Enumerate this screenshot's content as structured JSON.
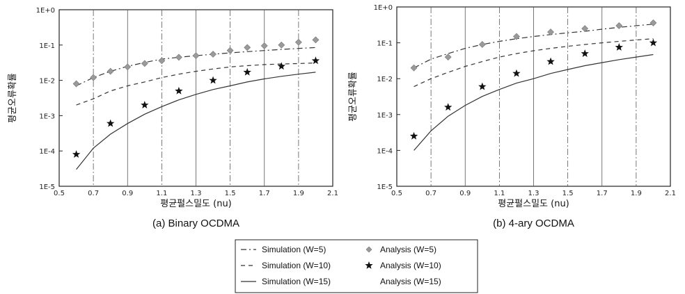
{
  "chart_data": [
    {
      "type": "line",
      "caption": "(a) Binary OCDMA",
      "xlabel": "평균펄스밀도 (nu)",
      "ylabel": "평균오류확률",
      "log_y": true,
      "ylim": [
        1e-05,
        1
      ],
      "xlim": [
        0.5,
        2.1
      ],
      "x_ticks": [
        "0.5",
        "0.7",
        "0.9",
        "1.1",
        "1.3",
        "1.5",
        "1.7",
        "1.9",
        "2.1"
      ],
      "y_ticks": [
        "1E-5",
        "1E-4",
        "1E-3",
        "1E-2",
        "1E-1",
        "1E+0"
      ],
      "series": [
        {
          "name": "Simulation (W=5)",
          "kind": "simulation",
          "x": [
            0.6,
            0.7,
            0.8,
            0.9,
            1.0,
            1.1,
            1.2,
            1.3,
            1.4,
            1.5,
            1.6,
            1.7,
            1.8,
            1.9,
            2.0
          ],
          "y": [
            0.007,
            0.012,
            0.018,
            0.025,
            0.032,
            0.04,
            0.045,
            0.05,
            0.055,
            0.06,
            0.065,
            0.07,
            0.075,
            0.08,
            0.085
          ]
        },
        {
          "name": "Analysis (W=5)",
          "kind": "analysis",
          "x": [
            0.6,
            0.7,
            0.8,
            0.9,
            1.0,
            1.1,
            1.2,
            1.3,
            1.4,
            1.5,
            1.6,
            1.7,
            1.8,
            1.9,
            2.0
          ],
          "y": [
            0.008,
            0.012,
            0.018,
            0.024,
            0.03,
            0.036,
            0.045,
            0.05,
            0.055,
            0.07,
            0.085,
            0.095,
            0.1,
            0.12,
            0.14
          ]
        },
        {
          "name": "Simulation (W=10)",
          "kind": "simulation",
          "x": [
            0.6,
            0.7,
            0.8,
            0.9,
            1.0,
            1.1,
            1.2,
            1.3,
            1.4,
            1.5,
            1.6,
            1.7,
            1.8,
            1.9,
            2.0
          ],
          "y": [
            0.002,
            0.003,
            0.005,
            0.007,
            0.009,
            0.012,
            0.015,
            0.018,
            0.021,
            0.024,
            0.026,
            0.028,
            0.029,
            0.03,
            0.031
          ]
        },
        {
          "name": "Analysis (W=10)",
          "kind": "analysis",
          "x": [
            0.6,
            0.8,
            1.0,
            1.2,
            1.4,
            1.6,
            1.8,
            2.0
          ],
          "y": [
            8e-05,
            0.0006,
            0.002,
            0.005,
            0.01,
            0.017,
            0.025,
            0.036
          ]
        },
        {
          "name": "Simulation (W=15)",
          "kind": "simulation",
          "x": [
            0.6,
            0.7,
            0.8,
            0.9,
            1.0,
            1.1,
            1.2,
            1.3,
            1.4,
            1.5,
            1.6,
            1.7,
            1.8,
            1.9,
            2.0
          ],
          "y": [
            3e-05,
            0.00012,
            0.0003,
            0.0006,
            0.0011,
            0.0018,
            0.0028,
            0.004,
            0.0055,
            0.007,
            0.009,
            0.011,
            0.013,
            0.015,
            0.017
          ]
        },
        {
          "name": "Analysis (W=15)",
          "kind": "analysis",
          "x": [],
          "y": []
        }
      ]
    },
    {
      "type": "line",
      "caption": "(b) 4-ary OCDMA",
      "xlabel": "평균펄스밀도 (nu)",
      "ylabel": "평균오류확률",
      "log_y": true,
      "ylim": [
        1e-05,
        1
      ],
      "xlim": [
        0.5,
        2.1
      ],
      "x_ticks": [
        "0.5",
        "0.7",
        "0.9",
        "1.1",
        "1.3",
        "1.5",
        "1.7",
        "1.9",
        "2.1"
      ],
      "y_ticks": [
        "1E-5",
        "1E-4",
        "1E-3",
        "1E-2",
        "1E-1",
        "1E+0"
      ],
      "series": [
        {
          "name": "Simulation (W=5)",
          "kind": "simulation",
          "x": [
            0.6,
            0.7,
            0.8,
            0.9,
            1.0,
            1.1,
            1.2,
            1.3,
            1.4,
            1.5,
            1.6,
            1.7,
            1.8,
            1.9,
            2.0
          ],
          "y": [
            0.02,
            0.035,
            0.05,
            0.07,
            0.09,
            0.11,
            0.13,
            0.15,
            0.17,
            0.19,
            0.21,
            0.24,
            0.27,
            0.3,
            0.33
          ]
        },
        {
          "name": "Analysis (W=5)",
          "kind": "analysis",
          "x": [
            0.6,
            0.8,
            1.0,
            1.2,
            1.4,
            1.6,
            1.8,
            2.0
          ],
          "y": [
            0.02,
            0.04,
            0.09,
            0.15,
            0.2,
            0.25,
            0.3,
            0.36
          ]
        },
        {
          "name": "Simulation (W=10)",
          "kind": "simulation",
          "x": [
            0.6,
            0.7,
            0.8,
            0.9,
            1.0,
            1.1,
            1.2,
            1.3,
            1.4,
            1.5,
            1.6,
            1.7,
            1.8,
            1.9,
            2.0
          ],
          "y": [
            0.006,
            0.01,
            0.015,
            0.022,
            0.03,
            0.04,
            0.05,
            0.06,
            0.07,
            0.08,
            0.09,
            0.1,
            0.11,
            0.12,
            0.13
          ]
        },
        {
          "name": "Analysis (W=10)",
          "kind": "analysis",
          "x": [
            0.6,
            0.8,
            1.0,
            1.2,
            1.4,
            1.6,
            1.8,
            2.0
          ],
          "y": [
            0.00025,
            0.0016,
            0.006,
            0.014,
            0.03,
            0.05,
            0.075,
            0.1
          ]
        },
        {
          "name": "Simulation (W=15)",
          "kind": "simulation",
          "x": [
            0.6,
            0.7,
            0.8,
            0.9,
            1.0,
            1.1,
            1.2,
            1.3,
            1.4,
            1.5,
            1.6,
            1.7,
            1.8,
            1.9,
            2.0
          ],
          "y": [
            0.0001,
            0.00035,
            0.0009,
            0.0018,
            0.0032,
            0.005,
            0.0075,
            0.01,
            0.014,
            0.018,
            0.023,
            0.028,
            0.034,
            0.04,
            0.047
          ]
        },
        {
          "name": "Analysis (W=15)",
          "kind": "analysis",
          "x": [],
          "y": []
        }
      ]
    }
  ],
  "legend": {
    "items": [
      {
        "label": "Simulation (W=5)",
        "style": "dash-dot"
      },
      {
        "label": "Analysis (W=5)",
        "style": "diamond"
      },
      {
        "label": "Simulation (W=10)",
        "style": "dashed"
      },
      {
        "label": "Analysis (W=10)",
        "style": "star"
      },
      {
        "label": "Simulation (W=15)",
        "style": "solid"
      },
      {
        "label": "Analysis (W=15)",
        "style": "none"
      }
    ]
  },
  "colors": {
    "line": "#333333",
    "diamond": "#9a9a9a",
    "star": "#111111",
    "grid": "#555555"
  }
}
